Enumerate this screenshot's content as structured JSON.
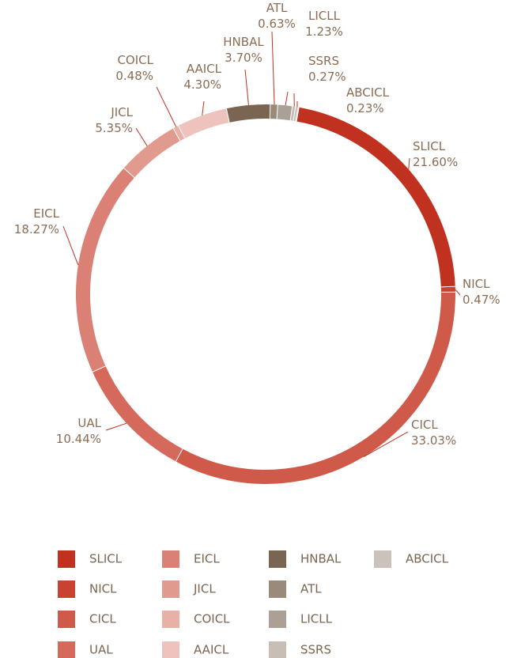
{
  "chart_data": {
    "type": "donut",
    "categories": [
      "SLICL",
      "NICL",
      "CICL",
      "UAL",
      "EICL",
      "JICL",
      "COICL",
      "AAICL",
      "HNBAL",
      "ATL",
      "LICLL",
      "SSRS",
      "ABCICL"
    ],
    "values": [
      21.6,
      0.47,
      33.03,
      10.44,
      18.27,
      5.35,
      0.48,
      4.3,
      3.7,
      0.63,
      1.23,
      0.27,
      0.23
    ],
    "value_labels": [
      "21.60%",
      "0.47%",
      "33.03%",
      "10.44%",
      "18.27%",
      "5.35%",
      "0.48%",
      "4.30%",
      "3.70%",
      "0.63%",
      "1.23%",
      "0.27%",
      "0.23%"
    ],
    "colors": [
      "#c0311f",
      "#c9412f",
      "#d05a4a",
      "#d56a5c",
      "#da8074",
      "#e09a8e",
      "#e8b0a6",
      "#efc3bd",
      "#7a6552",
      "#9a8a7a",
      "#aba095",
      "#c7beb5",
      "#cbc3bb"
    ],
    "legend": true
  }
}
